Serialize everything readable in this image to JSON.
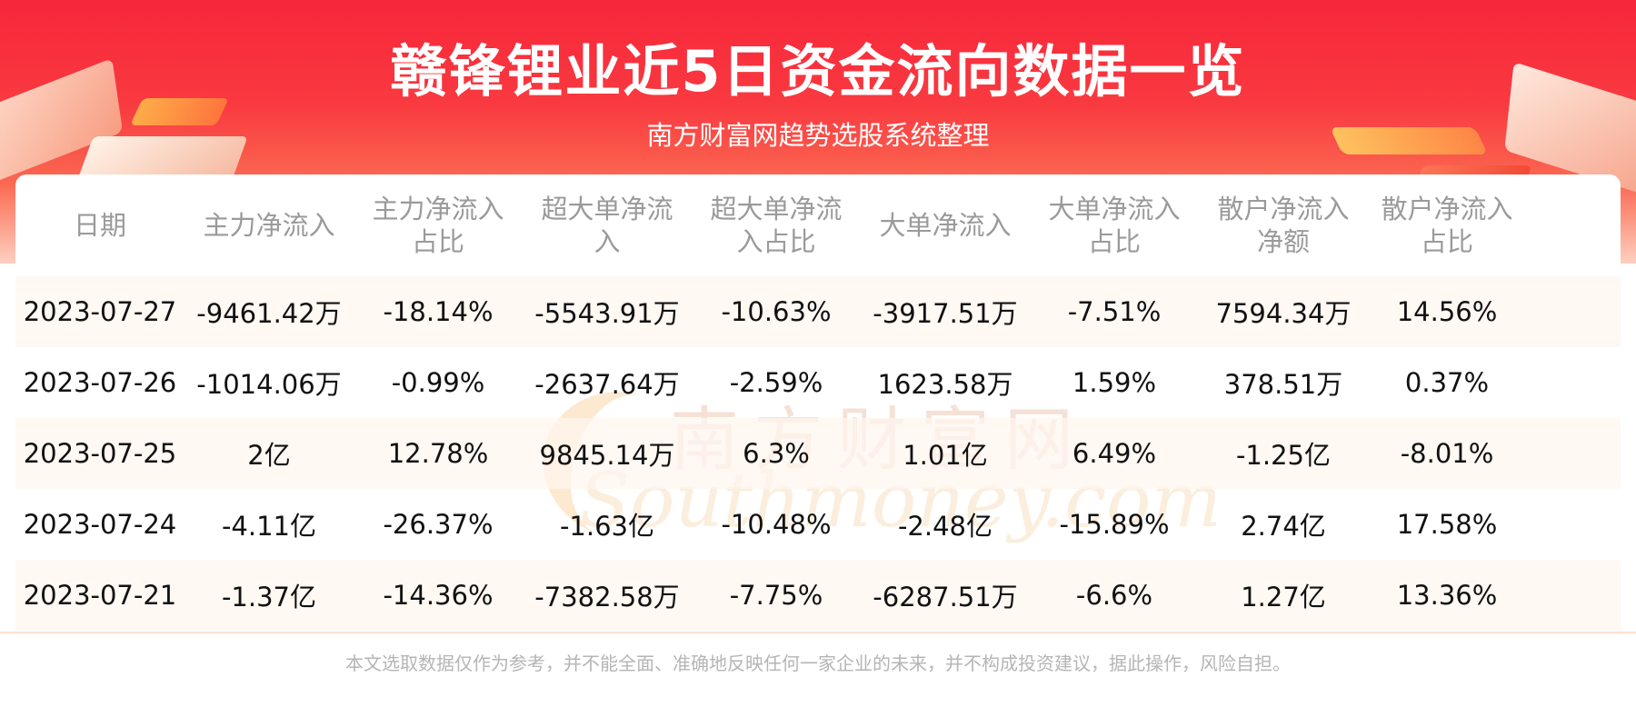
{
  "header": {
    "title": "赣锋锂业近5日资金流向数据一览",
    "subtitle": "南方财富网趋势选股系统整理"
  },
  "watermark": {
    "cn": "南方财富网",
    "en": "Southmoney.com"
  },
  "table": {
    "columns": [
      "日期",
      "主力净流入",
      "主力净流入占比",
      "超大单净流入",
      "超大单净流入占比",
      "大单净流入",
      "大单净流入占比",
      "散户净流入净额",
      "散户净流入占比"
    ],
    "rows": [
      [
        "2023-07-27",
        "-9461.42万",
        "-18.14%",
        "-5543.91万",
        "-10.63%",
        "-3917.51万",
        "-7.51%",
        "7594.34万",
        "14.56%"
      ],
      [
        "2023-07-26",
        "-1014.06万",
        "-0.99%",
        "-2637.64万",
        "-2.59%",
        "1623.58万",
        "1.59%",
        "378.51万",
        "0.37%"
      ],
      [
        "2023-07-25",
        "2亿",
        "12.78%",
        "9845.14万",
        "6.3%",
        "1.01亿",
        "6.49%",
        "-1.25亿",
        "-8.01%"
      ],
      [
        "2023-07-24",
        "-4.11亿",
        "-26.37%",
        "-1.63亿",
        "-10.48%",
        "-2.48亿",
        "-15.89%",
        "2.74亿",
        "17.58%"
      ],
      [
        "2023-07-21",
        "-1.37亿",
        "-14.36%",
        "-7382.58万",
        "-7.75%",
        "-6287.51万",
        "-6.6%",
        "1.27亿",
        "13.36%"
      ]
    ]
  },
  "footer": {
    "disclaimer": "本文选取数据仅作为参考，并不能全面、准确地反映任何一家企业的未来，并不构成投资建议，据此操作，风险自担。"
  },
  "colors": {
    "header_red": "#f7263a",
    "stripe": "#fff5ee",
    "header_text": "#9a9a9a"
  }
}
